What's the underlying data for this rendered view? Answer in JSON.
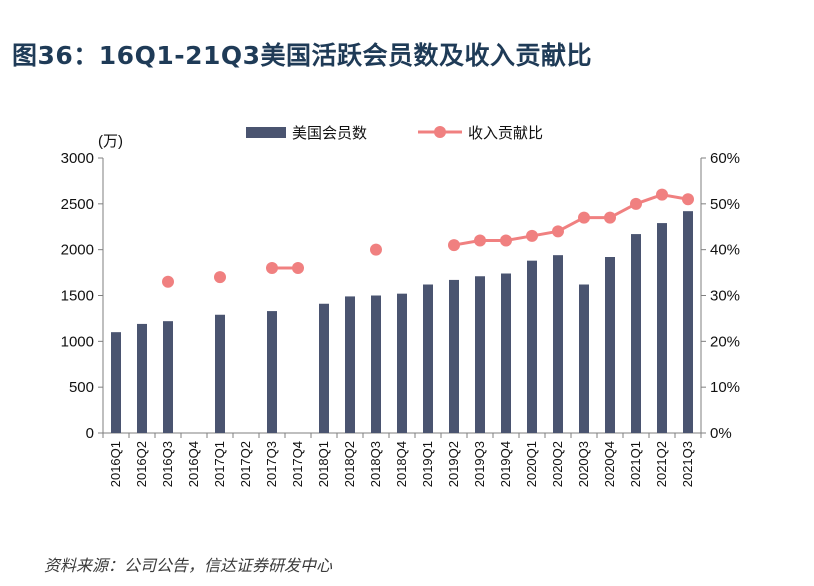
{
  "title": "图36：16Q1-21Q3美国活跃会员数及收入贡献比",
  "source": "资料来源：公司公告，信达证券研发中心",
  "chart_data": {
    "type": "bar",
    "categories": [
      "2016Q1",
      "2016Q2",
      "2016Q3",
      "2016Q4",
      "2017Q1",
      "2017Q2",
      "2017Q3",
      "2017Q4",
      "2018Q1",
      "2018Q2",
      "2018Q3",
      "2018Q4",
      "2019Q1",
      "2019Q2",
      "2019Q3",
      "2019Q4",
      "2020Q1",
      "2020Q2",
      "2020Q3",
      "2020Q4",
      "2021Q1",
      "2021Q2",
      "2021Q3"
    ],
    "y_left_unit": "(万)",
    "y_left_ticks": [
      "0",
      "500",
      "1000",
      "1500",
      "2000",
      "2500",
      "3000"
    ],
    "y_left_range": [
      0,
      3000
    ],
    "y_right_ticks": [
      "0%",
      "10%",
      "20%",
      "30%",
      "40%",
      "50%",
      "60%"
    ],
    "y_right_range": [
      0,
      60
    ],
    "legend_position": "top",
    "grid": false,
    "series": [
      {
        "name": "美国会员数",
        "type": "bar",
        "axis": "left",
        "color": "#4a5470",
        "values": [
          1100,
          1190,
          1220,
          null,
          1290,
          null,
          1330,
          null,
          1410,
          1490,
          1500,
          1520,
          1620,
          1670,
          1710,
          1740,
          1880,
          1940,
          1620,
          1920,
          2170,
          2290,
          2420
        ]
      },
      {
        "name": "收入贡献比",
        "type": "line",
        "axis": "right",
        "color": "#f08080",
        "values": [
          null,
          null,
          33,
          null,
          34,
          null,
          36,
          36,
          null,
          null,
          40,
          null,
          null,
          41,
          42,
          42,
          43,
          44,
          47,
          47,
          50,
          52,
          51
        ]
      }
    ]
  }
}
